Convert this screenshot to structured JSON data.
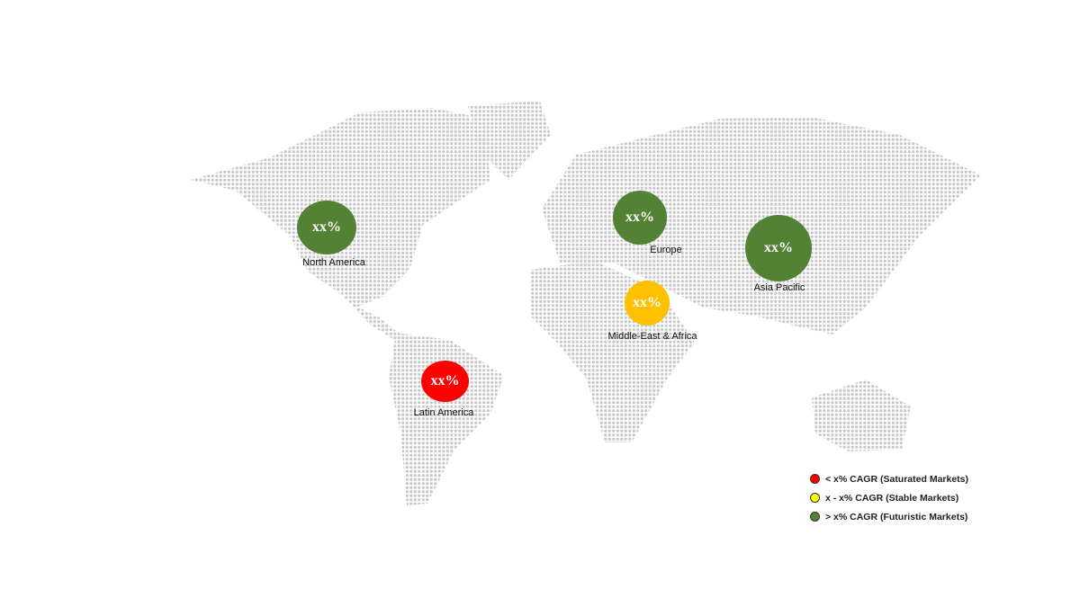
{
  "regions": [
    {
      "name": "North America",
      "value": "xx%",
      "color": "#548235"
    },
    {
      "name": "Europe",
      "value": "xx%",
      "color": "#548235"
    },
    {
      "name": "Asia Pacific",
      "value": "xx%",
      "color": "#548235"
    },
    {
      "name": "Middle-East & Africa",
      "value": "xx%",
      "color": "#ffc000"
    },
    {
      "name": "Latin America",
      "value": "xx%",
      "color": "#ff0000"
    }
  ],
  "legend": [
    {
      "label": "< x% CAGR (Saturated Markets)",
      "color": "#ff0000"
    },
    {
      "label": "x - x% CAGR (Stable Markets)",
      "color": "#ffff00"
    },
    {
      "label": "> x% CAGR (Futuristic Markets)",
      "color": "#548235"
    }
  ],
  "map_dot_color": "#c8c8c8"
}
